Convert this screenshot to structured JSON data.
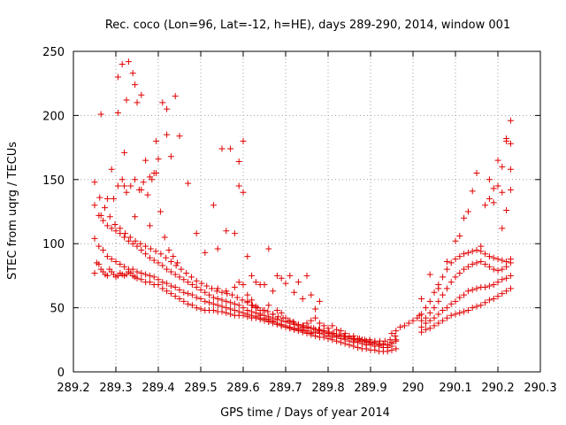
{
  "chart_data": {
    "type": "scatter",
    "title": "Rec. coco (Lon=96, Lat=-12, h=HE), days 289-290, 2014, window 001",
    "xlabel": "GPS time / Days of year 2014",
    "ylabel": "STEC from uqrg / TECUs",
    "xlim": [
      289.2,
      290.3
    ],
    "ylim": [
      0,
      250
    ],
    "xticks": [
      "289.2",
      "289.3",
      "289.4",
      "289.5",
      "289.6",
      "289.7",
      "289.8",
      "289.9",
      "290",
      "290.1",
      "290.2",
      "290.3"
    ],
    "yticks": [
      "0",
      "50",
      "100",
      "150",
      "200",
      "250"
    ],
    "grid": true,
    "legend": "none",
    "marker": "plus",
    "color": "#e00000",
    "series": [
      {
        "x": [
          289.25,
          289.255,
          289.26,
          289.265,
          289.27,
          289.275,
          289.28,
          289.285,
          289.29,
          289.295,
          289.3,
          289.305,
          289.31,
          289.315,
          289.32,
          289.325,
          289.33,
          289.335,
          289.34,
          289.345,
          289.35,
          289.36,
          289.37,
          289.38,
          289.39,
          289.4,
          289.41,
          289.42,
          289.43,
          289.44,
          289.45,
          289.46,
          289.47,
          289.48,
          289.49,
          289.5,
          289.51,
          289.52,
          289.53,
          289.54,
          289.55,
          289.56,
          289.57,
          289.58,
          289.59,
          289.6,
          289.61,
          289.62,
          289.63,
          289.64,
          289.65,
          289.66,
          289.67,
          289.68,
          289.69,
          289.7,
          289.71,
          289.72,
          289.73,
          289.74,
          289.75,
          289.76,
          289.77,
          289.78,
          289.79,
          289.8,
          289.81,
          289.82,
          289.83,
          289.84,
          289.85,
          289.86,
          289.87,
          289.88,
          289.89,
          289.9,
          289.91,
          289.92,
          289.93,
          289.94,
          289.95,
          289.96
        ],
        "y": [
          77,
          85,
          84,
          80,
          78,
          76,
          75,
          80,
          78,
          76,
          74,
          75,
          77,
          76,
          75,
          76,
          78,
          77,
          75,
          74,
          73,
          72,
          70,
          70,
          68,
          68,
          65,
          63,
          61,
          59,
          57,
          55,
          53,
          52,
          50,
          49,
          48,
          48,
          48,
          47,
          47,
          46,
          45,
          44,
          44,
          44,
          43,
          42,
          42,
          41,
          40,
          39,
          38,
          37,
          36,
          35,
          34,
          33,
          32,
          31,
          30,
          29,
          28,
          27,
          27,
          26,
          25,
          24,
          23,
          22,
          21,
          20,
          19,
          18,
          18,
          17,
          17,
          16,
          16,
          16,
          17,
          18
        ]
      },
      {
        "x": [
          289.25,
          289.26,
          289.27,
          289.28,
          289.29,
          289.3,
          289.31,
          289.32,
          289.33,
          289.34,
          289.35,
          289.36,
          289.37,
          289.38,
          289.39,
          289.4,
          289.41,
          289.42,
          289.43,
          289.44,
          289.45,
          289.46,
          289.47,
          289.48,
          289.49,
          289.5,
          289.51,
          289.52,
          289.53,
          289.54,
          289.55,
          289.56,
          289.57,
          289.58,
          289.59,
          289.6,
          289.61,
          289.62,
          289.63,
          289.64,
          289.65,
          289.66,
          289.67,
          289.68,
          289.69,
          289.7,
          289.71,
          289.72,
          289.73,
          289.74,
          289.75,
          289.76,
          289.77,
          289.78,
          289.79,
          289.8,
          289.81,
          289.82,
          289.83,
          289.84,
          289.85,
          289.86,
          289.87,
          289.88,
          289.89,
          289.9,
          289.91,
          289.92,
          289.93,
          289.94,
          289.95
        ],
        "y": [
          104,
          98,
          95,
          90,
          88,
          86,
          84,
          82,
          80,
          80,
          78,
          77,
          76,
          75,
          74,
          72,
          70,
          69,
          67,
          66,
          64,
          62,
          61,
          60,
          58,
          57,
          55,
          54,
          53,
          52,
          51,
          50,
          49,
          48,
          47,
          46,
          45,
          44,
          43,
          42,
          41,
          40,
          39,
          38,
          37,
          36,
          35,
          34,
          34,
          33,
          32,
          31,
          31,
          30,
          29,
          28,
          27,
          27,
          26,
          25,
          24,
          23,
          23,
          22,
          21,
          21,
          20,
          20,
          19,
          19,
          20
        ]
      },
      {
        "x": [
          289.25,
          289.26,
          289.27,
          289.28,
          289.29,
          289.3,
          289.31,
          289.32,
          289.33,
          289.34,
          289.35,
          289.36,
          289.37,
          289.38,
          289.39,
          289.4,
          289.41,
          289.42,
          289.43,
          289.44,
          289.45,
          289.46,
          289.47,
          289.48,
          289.49,
          289.5,
          289.51,
          289.52,
          289.53,
          289.54,
          289.55,
          289.56,
          289.57,
          289.58,
          289.59,
          289.6,
          289.61,
          289.62,
          289.63,
          289.64,
          289.65,
          289.66,
          289.67,
          289.68,
          289.69,
          289.7,
          289.71,
          289.72,
          289.73,
          289.74,
          289.75,
          289.76,
          289.77,
          289.78,
          289.79,
          289.8,
          289.81,
          289.82,
          289.83,
          289.84,
          289.85,
          289.86,
          289.87,
          289.88,
          289.89,
          289.9,
          289.91,
          289.92,
          289.93,
          289.94,
          289.95,
          289.96
        ],
        "y": [
          130,
          122,
          118,
          114,
          112,
          110,
          108,
          105,
          102,
          100,
          98,
          95,
          92,
          89,
          87,
          85,
          83,
          80,
          78,
          76,
          74,
          72,
          70,
          68,
          66,
          64,
          62,
          60,
          58,
          57,
          56,
          55,
          54,
          53,
          52,
          50,
          48,
          47,
          46,
          45,
          44,
          43,
          42,
          41,
          40,
          39,
          38,
          37,
          36,
          35,
          34,
          34,
          33,
          32,
          31,
          31,
          30,
          29,
          28,
          28,
          27,
          26,
          25,
          25,
          24,
          23,
          23,
          22,
          22,
          21,
          22,
          24
        ]
      },
      {
        "x": [
          289.25,
          289.262,
          289.274,
          289.286,
          289.298,
          289.31,
          289.322,
          289.334,
          289.346,
          289.358,
          289.37,
          289.382,
          289.394,
          289.406,
          289.418,
          289.43,
          289.442,
          289.454,
          289.466,
          289.478,
          289.49,
          289.502,
          289.514,
          289.526,
          289.538,
          289.55,
          289.562,
          289.574,
          289.586,
          289.598,
          289.61,
          289.622,
          289.634,
          289.646,
          289.658,
          289.67,
          289.682,
          289.694,
          289.706,
          289.718,
          289.73,
          289.742,
          289.754,
          289.766,
          289.778,
          289.79,
          289.802,
          289.814,
          289.826,
          289.838,
          289.85,
          289.862,
          289.874,
          289.886,
          289.898,
          289.91,
          289.922,
          289.934,
          289.946,
          289.958
        ],
        "y": [
          148,
          136,
          128,
          121,
          115,
          112,
          108,
          105,
          102,
          100,
          98,
          96,
          94,
          92,
          89,
          86,
          83,
          80,
          77,
          74,
          71,
          69,
          67,
          65,
          63,
          62,
          61,
          60,
          58,
          56,
          54,
          52,
          50,
          48,
          47,
          45,
          43,
          42,
          40,
          39,
          37,
          36,
          35,
          34,
          33,
          32,
          31,
          30,
          29,
          28,
          27,
          26,
          26,
          25,
          25,
          24,
          24,
          24,
          25,
          28
        ]
      },
      {
        "x": [
          289.265,
          289.28,
          289.295,
          289.305,
          289.315,
          289.325,
          289.335,
          289.345,
          289.355,
          289.365,
          289.375,
          289.385,
          289.395,
          289.405,
          289.415,
          289.425,
          289.435,
          289.445
        ],
        "y": [
          122,
          135,
          135,
          145,
          150,
          140,
          145,
          150,
          142,
          148,
          138,
          150,
          155,
          125,
          105,
          95,
          90,
          85
        ]
      },
      {
        "x": [
          289.265,
          289.29,
          289.305,
          289.315,
          289.32,
          289.325,
          289.33,
          289.34,
          289.345,
          289.35,
          289.36,
          289.37,
          289.38,
          289.39,
          289.41,
          289.42,
          289.43,
          289.44,
          289.45,
          289.47
        ],
        "y": [
          201,
          158,
          202,
          240,
          171,
          212,
          242,
          233,
          224,
          210,
          216,
          165,
          152,
          155,
          210,
          205,
          168,
          215,
          184,
          147
        ]
      },
      {
        "x": [
          289.305,
          289.32,
          289.345,
          289.36,
          289.38,
          289.395,
          289.4,
          289.42,
          289.49,
          289.51,
          289.53,
          289.54,
          289.55,
          289.56,
          289.57,
          289.58,
          289.59,
          289.6,
          289.61,
          289.62,
          289.63,
          289.64,
          289.65,
          289.66,
          289.67,
          289.68,
          289.69,
          289.7,
          289.71,
          289.72,
          289.73,
          289.74,
          289.75,
          289.76,
          289.77,
          289.78
        ],
        "y": [
          230,
          145,
          121,
          142,
          114,
          180,
          166,
          185,
          108,
          93,
          130,
          96,
          174,
          110,
          174,
          108,
          164,
          180,
          90,
          75,
          70,
          68,
          68,
          96,
          63,
          75,
          73,
          69,
          75,
          62,
          70,
          57,
          75,
          60,
          49,
          55
        ]
      },
      {
        "x": [
          289.54,
          289.56,
          289.58,
          289.59,
          289.6,
          289.61,
          289.62,
          289.63,
          289.64,
          289.65,
          289.66,
          289.67,
          289.68,
          289.69,
          289.7,
          289.71,
          289.72,
          289.73,
          289.74,
          289.75,
          289.76,
          289.77,
          289.78,
          289.79,
          289.8,
          289.81,
          289.82,
          289.83,
          289.84,
          289.85,
          289.86,
          289.87,
          289.88,
          289.89,
          289.9
        ],
        "y": [
          65,
          63,
          66,
          70,
          68,
          60,
          56,
          51,
          48,
          48,
          52,
          45,
          48,
          46,
          42,
          40,
          38,
          36,
          36,
          38,
          40,
          42,
          38,
          36,
          34,
          36,
          33,
          32,
          30,
          28,
          28,
          26,
          25,
          24,
          23
        ]
      },
      {
        "x": [
          289.59,
          289.6,
          289.61,
          289.62,
          289.63,
          289.64,
          289.65,
          289.66,
          289.67,
          289.68,
          289.69,
          289.7,
          289.71,
          289.72,
          289.73,
          289.74,
          289.75,
          289.76,
          289.77,
          289.78,
          289.79,
          289.8,
          289.81,
          289.82,
          289.83,
          289.84,
          289.85,
          289.86,
          289.87,
          289.88,
          289.89,
          289.9,
          289.91,
          289.92,
          289.93,
          289.94,
          289.95,
          289.96
        ],
        "y": [
          145,
          140,
          55,
          52,
          50,
          44,
          42,
          41,
          40,
          38,
          36,
          35,
          34,
          33,
          33,
          32,
          31,
          30,
          31,
          33,
          32,
          30,
          29,
          28,
          29,
          27,
          26,
          25,
          24,
          24,
          23,
          22,
          22,
          21,
          21,
          21,
          23,
          25
        ]
      },
      {
        "x": [
          290.02,
          290.03,
          290.04,
          290.05,
          290.06,
          290.07,
          290.08,
          290.09,
          290.1,
          290.11,
          290.12,
          290.13,
          290.14,
          290.15,
          290.16,
          290.17,
          290.18,
          290.19,
          290.2,
          290.21,
          290.22,
          290.23
        ],
        "y": [
          31,
          33,
          34,
          36,
          38,
          40,
          42,
          44,
          45,
          46,
          47,
          48,
          50,
          51,
          52,
          54,
          56,
          57,
          59,
          61,
          63,
          65
        ]
      },
      {
        "x": [
          290.02,
          290.03,
          290.04,
          290.05,
          290.06,
          290.07,
          290.08,
          290.09,
          290.1,
          290.11,
          290.12,
          290.13,
          290.14,
          290.15,
          290.16,
          290.17,
          290.18,
          290.19,
          290.2,
          290.21,
          290.22,
          290.23
        ],
        "y": [
          35,
          38,
          40,
          42,
          45,
          48,
          50,
          53,
          55,
          58,
          60,
          63,
          64,
          65,
          66,
          66,
          67,
          68,
          70,
          72,
          73,
          75
        ]
      },
      {
        "x": [
          290.02,
          290.03,
          290.04,
          290.05,
          290.06,
          290.07,
          290.08,
          290.09,
          290.1,
          290.11,
          290.12,
          290.13,
          290.14,
          290.15,
          290.16,
          290.17,
          290.18,
          290.19,
          290.2,
          290.21,
          290.22,
          290.23
        ],
        "y": [
          40,
          42,
          46,
          50,
          55,
          60,
          65,
          70,
          74,
          77,
          80,
          82,
          84,
          85,
          86,
          84,
          82,
          80,
          79,
          80,
          82,
          85
        ]
      },
      {
        "x": [
          290.02,
          290.03,
          290.04,
          290.05,
          290.06,
          290.07,
          290.08,
          290.09,
          290.1,
          290.11,
          290.12,
          290.13,
          290.14,
          290.15,
          290.16,
          290.17,
          290.18,
          290.19,
          290.2,
          290.21,
          290.22,
          290.23
        ],
        "y": [
          45,
          50,
          55,
          62,
          68,
          74,
          80,
          85,
          88,
          90,
          92,
          93,
          94,
          95,
          94,
          92,
          90,
          89,
          88,
          87,
          86,
          88
        ]
      },
      {
        "x": [
          290.02,
          290.04,
          290.06,
          290.08,
          290.1,
          290.11,
          290.12,
          290.13,
          290.14,
          290.15,
          290.16,
          290.17,
          290.18,
          290.19,
          290.2,
          290.21,
          290.22,
          290.23
        ],
        "y": [
          57,
          76,
          65,
          86,
          102,
          106,
          120,
          125,
          141,
          155,
          98,
          130,
          135,
          143,
          165,
          140,
          180,
          196
        ]
      },
      {
        "x": [
          290.18,
          290.19,
          290.2,
          290.21,
          290.22,
          290.23,
          290.23,
          290.23,
          290.22,
          290.21
        ],
        "y": [
          150,
          132,
          145,
          160,
          182,
          178,
          142,
          158,
          126,
          112
        ]
      },
      {
        "x": [
          289.95,
          289.96,
          289.97,
          289.98,
          289.99,
          290.0,
          290.01,
          290.015
        ],
        "y": [
          30,
          32,
          35,
          36,
          38,
          40,
          42,
          44
        ]
      }
    ]
  }
}
